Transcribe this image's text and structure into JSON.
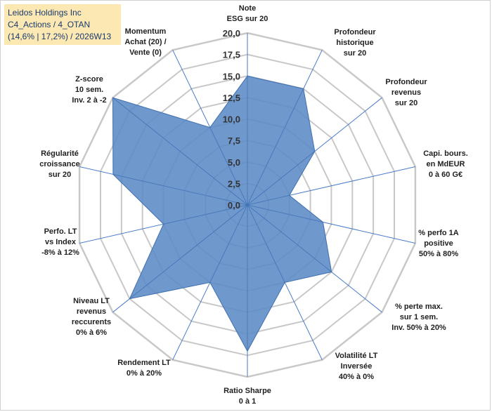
{
  "title": {
    "line1": "Leidos Holdings Inc",
    "line2": "C4_Actions / 4_OTAN",
    "line3": "(14,6% | 17,2%) / 2026W13"
  },
  "chart_data": {
    "type": "radar",
    "rlim": [
      0,
      20
    ],
    "ticks": [
      "0,0",
      "2,5",
      "5,0",
      "7,5",
      "10,0",
      "12,5",
      "15,0",
      "17,5",
      "20,0"
    ],
    "tick_values": [
      0,
      2.5,
      5,
      7.5,
      10,
      12.5,
      15,
      17.5,
      20
    ],
    "grid": true,
    "axes": [
      {
        "label": [
          "Note",
          "ESG sur 20"
        ],
        "value": 15
      },
      {
        "label": [
          "Profondeur",
          "historique",
          "sur 20"
        ],
        "value": 15
      },
      {
        "label": [
          "Profondeur",
          "revenus",
          "sur 20"
        ],
        "value": 10
      },
      {
        "label": [
          "Capi. bours.",
          "en MdEUR",
          "0 à 60 G€"
        ],
        "value": 5
      },
      {
        "label": [
          "% perfo 1A",
          "positive",
          "50% à 80%"
        ],
        "value": 9
      },
      {
        "label": [
          "% perte max.",
          "sur 1 sem.",
          "Inv. 50% à 20%"
        ],
        "value": 12.5
      },
      {
        "label": [
          "Volatilité LT",
          "Inversée",
          "40% à 0%"
        ],
        "value": 10
      },
      {
        "label": [
          "Ratio Sharpe",
          "0 à 1"
        ],
        "value": 17
      },
      {
        "label": [
          "Rendement LT",
          "0% à 20%"
        ],
        "value": 10
      },
      {
        "label": [
          "Niveau LT",
          "revenus",
          "reccurents",
          "0% à 6%"
        ],
        "value": 17.5
      },
      {
        "label": [
          "Perfo. LT",
          "vs Index",
          "-8% à 12%"
        ],
        "value": 10
      },
      {
        "label": [
          "Régularité",
          "croissance",
          "sur 20"
        ],
        "value": 16
      },
      {
        "label": [
          "Z-score",
          "10 sem.",
          "Inv. 2 à -2"
        ],
        "value": 20
      },
      {
        "label": [
          "Momentum",
          "Achat (20) /",
          "Vente (0)"
        ],
        "value": 10
      }
    ],
    "series": [
      {
        "name": "Leidos Holdings Inc",
        "color": "#5b8ac6",
        "stroke": "#3f6fb0"
      }
    ],
    "colors": {
      "grid": "#c8c8c8",
      "spoke": "#4a7cc7",
      "fill": "#5b8ac6"
    }
  }
}
